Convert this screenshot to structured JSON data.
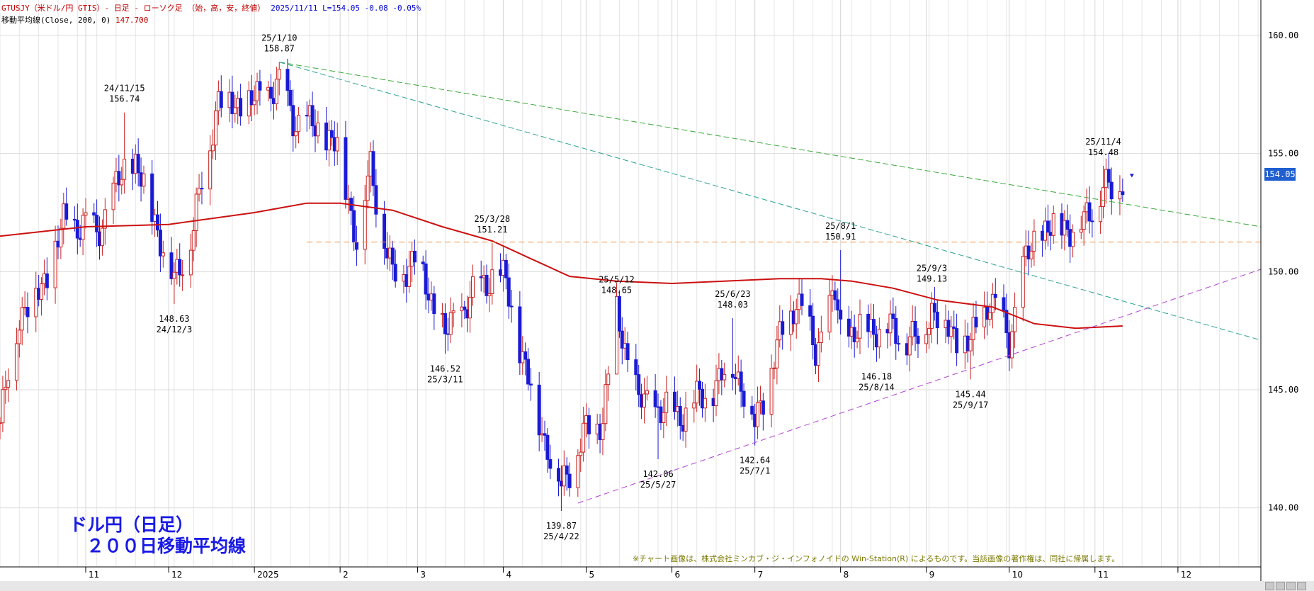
{
  "header": {
    "instrument": "GTUSJY（米ドル/円 GTIS）- 日足 - ローソク足 （始，高，安，終値）",
    "quote": "2025/11/11 L=154.05 -0.08 -0.05%",
    "ma_label": "移動平均線(Close, 200, 0)",
    "ma_value": "147.700"
  },
  "title_box": {
    "line1": "ドル円（日足）",
    "line2": "２００日移動平均線"
  },
  "copyright": "※チャート画像は、株式会社ミンカブ・ジ・インフォノイドの Win-Station(R) によるものです。当該画像の著作権は、同社に帰属します。",
  "last_price_tag": "154.05",
  "colors": {
    "up": "#cc2020",
    "down": "#1a1ad6",
    "ma": "#cc1010",
    "resistance": "#3aa83a",
    "support": "#b040d0",
    "level": "#f09040",
    "secondary": "#2aa090",
    "price_tag": "#1f5fd0"
  },
  "icons": {
    "scroll_left": "arrow-left-icon",
    "scroll_right": "arrow-right-icon",
    "zoom_out": "zoom-out-icon",
    "zoom_in": "zoom-in-icon"
  },
  "chart_data": {
    "type": "candlestick",
    "title": "ドル円（日足）　２００日移動平均線",
    "ylabel": "",
    "ylim": [
      137.5,
      161.5
    ],
    "y_ticks": [
      "160.00",
      "155.00",
      "150.00",
      "145.00",
      "140.00"
    ],
    "x_ticks": [
      "11",
      "12",
      "2025",
      "2",
      "3",
      "4",
      "5",
      "6",
      "7",
      "8",
      "9",
      "10",
      "11",
      "12"
    ],
    "x_tick_dates": [
      "2024-11-01",
      "2024-12-01",
      "2025-01-01",
      "2025-02-01",
      "2025-03-01",
      "2025-04-01",
      "2025-05-01",
      "2025-06-01",
      "2025-07-01",
      "2025-08-01",
      "2025-09-01",
      "2025-10-01",
      "2025-11-01",
      "2025-12-01"
    ],
    "xlim": [
      "2024-10-01",
      "2025-12-31"
    ],
    "grid": true,
    "ohlc_points": [
      {
        "date": "2024-10-01",
        "close": 143.6
      },
      {
        "date": "2024-10-08",
        "close": 148.2
      },
      {
        "date": "2024-10-16",
        "close": 149.3
      },
      {
        "date": "2024-10-24",
        "close": 152.0
      },
      {
        "date": "2024-10-31",
        "close": 152.0
      },
      {
        "date": "2024-11-05",
        "close": 151.6
      },
      {
        "date": "2024-11-15",
        "close": 154.3
      },
      {
        "date": "2024-11-19",
        "close": 154.6
      },
      {
        "date": "2024-11-28",
        "close": 151.5
      },
      {
        "date": "2024-12-03",
        "close": 149.5
      },
      {
        "date": "2024-12-10",
        "close": 151.9
      },
      {
        "date": "2024-12-19",
        "close": 157.4
      },
      {
        "date": "2024-12-25",
        "close": 157.0
      },
      {
        "date": "2025-01-03",
        "close": 157.3
      },
      {
        "date": "2025-01-10",
        "close": 158.0
      },
      {
        "date": "2025-01-15",
        "close": 156.5
      },
      {
        "date": "2025-01-24",
        "close": 156.0
      },
      {
        "date": "2025-01-31",
        "close": 155.3
      },
      {
        "date": "2025-02-07",
        "close": 151.4
      },
      {
        "date": "2025-02-12",
        "close": 154.4
      },
      {
        "date": "2025-02-20",
        "close": 149.7
      },
      {
        "date": "2025-02-28",
        "close": 150.6
      },
      {
        "date": "2025-03-11",
        "close": 147.3
      },
      {
        "date": "2025-03-19",
        "close": 148.7
      },
      {
        "date": "2025-03-28",
        "close": 149.9
      },
      {
        "date": "2025-04-02",
        "close": 149.5
      },
      {
        "date": "2025-04-08",
        "close": 146.3
      },
      {
        "date": "2025-04-16",
        "close": 142.9
      },
      {
        "date": "2025-04-22",
        "close": 140.9
      },
      {
        "date": "2025-04-30",
        "close": 143.0
      },
      {
        "date": "2025-05-07",
        "close": 143.9
      },
      {
        "date": "2025-05-12",
        "close": 148.2
      },
      {
        "date": "2025-05-20",
        "close": 144.5
      },
      {
        "date": "2025-05-27",
        "close": 144.2
      },
      {
        "date": "2025-06-03",
        "close": 143.9
      },
      {
        "date": "2025-06-11",
        "close": 144.6
      },
      {
        "date": "2025-06-18",
        "close": 145.3
      },
      {
        "date": "2025-06-23",
        "close": 146.2
      },
      {
        "date": "2025-07-01",
        "close": 143.6
      },
      {
        "date": "2025-07-09",
        "close": 146.7
      },
      {
        "date": "2025-07-16",
        "close": 148.9
      },
      {
        "date": "2025-07-23",
        "close": 146.7
      },
      {
        "date": "2025-07-30",
        "close": 149.0
      },
      {
        "date": "2025-08-01",
        "close": 147.4
      },
      {
        "date": "2025-08-07",
        "close": 147.4
      },
      {
        "date": "2025-08-14",
        "close": 147.7
      },
      {
        "date": "2025-08-21",
        "close": 147.4
      },
      {
        "date": "2025-08-29",
        "close": 147.1
      },
      {
        "date": "2025-09-03",
        "close": 148.5
      },
      {
        "date": "2025-09-10",
        "close": 147.4
      },
      {
        "date": "2025-09-17",
        "close": 146.9
      },
      {
        "date": "2025-09-24",
        "close": 148.9
      },
      {
        "date": "2025-10-01",
        "close": 147.1
      },
      {
        "date": "2025-10-06",
        "close": 150.1
      },
      {
        "date": "2025-10-10",
        "close": 151.2
      },
      {
        "date": "2025-10-14",
        "close": 151.8
      },
      {
        "date": "2025-10-21",
        "close": 151.9
      },
      {
        "date": "2025-10-28",
        "close": 152.0
      },
      {
        "date": "2025-11-04",
        "close": 153.7
      },
      {
        "date": "2025-11-07",
        "close": 153.3
      },
      {
        "date": "2025-11-11",
        "open": 154.13,
        "close": 154.05
      }
    ],
    "series": [
      {
        "name": "移動平均線(Close, 200, 0)",
        "type": "line",
        "points": [
          [
            "2024-10-01",
            151.5
          ],
          [
            "2024-11-01",
            151.9
          ],
          [
            "2024-12-01",
            152.0
          ],
          [
            "2025-01-01",
            152.5
          ],
          [
            "2025-01-20",
            152.9
          ],
          [
            "2025-02-01",
            152.9
          ],
          [
            "2025-02-20",
            152.6
          ],
          [
            "2025-03-10",
            151.9
          ],
          [
            "2025-03-28",
            151.3
          ],
          [
            "2025-04-10",
            150.6
          ],
          [
            "2025-04-25",
            149.8
          ],
          [
            "2025-05-12",
            149.6
          ],
          [
            "2025-06-01",
            149.5
          ],
          [
            "2025-06-20",
            149.6
          ],
          [
            "2025-07-10",
            149.7
          ],
          [
            "2025-07-25",
            149.7
          ],
          [
            "2025-08-05",
            149.6
          ],
          [
            "2025-08-20",
            149.3
          ],
          [
            "2025-09-05",
            148.8
          ],
          [
            "2025-09-25",
            148.5
          ],
          [
            "2025-10-10",
            147.8
          ],
          [
            "2025-10-25",
            147.6
          ],
          [
            "2025-11-11",
            147.7
          ]
        ]
      }
    ],
    "trendlines": [
      {
        "name": "resistance",
        "from": [
          "2025-01-10",
          158.87
        ],
        "to": [
          "2025-12-31",
          151.9
        ]
      },
      {
        "name": "secondary",
        "from": [
          "2025-01-10",
          158.87
        ],
        "to": [
          "2025-12-31",
          147.1
        ]
      },
      {
        "name": "support",
        "from": [
          "2025-04-28",
          140.2
        ],
        "to": [
          "2025-12-31",
          150.1
        ]
      },
      {
        "name": "level",
        "from": [
          "2025-01-20",
          151.25
        ],
        "to": [
          "2025-12-31",
          151.25
        ]
      }
    ],
    "annotations": [
      {
        "date": "2024-11-15",
        "price": 156.74,
        "label": [
          "24/11/15",
          "156.74"
        ],
        "position": "above"
      },
      {
        "date": "2024-12-03",
        "price": 148.63,
        "label": [
          "148.63",
          "24/12/3"
        ],
        "position": "below"
      },
      {
        "date": "2025-01-10",
        "price": 158.87,
        "label": [
          "25/1/10",
          "158.87"
        ],
        "position": "above"
      },
      {
        "date": "2025-03-11",
        "price": 146.52,
        "label": [
          "146.52",
          "25/3/11"
        ],
        "position": "below"
      },
      {
        "date": "2025-03-28",
        "price": 151.21,
        "label": [
          "25/3/28",
          "151.21"
        ],
        "position": "above"
      },
      {
        "date": "2025-04-22",
        "price": 139.87,
        "label": [
          "139.87",
          "25/4/22"
        ],
        "position": "below"
      },
      {
        "date": "2025-05-12",
        "price": 148.65,
        "label": [
          "25/5/12",
          "148.65"
        ],
        "position": "above"
      },
      {
        "date": "2025-05-27",
        "price": 142.06,
        "label": [
          "142.06",
          "25/5/27"
        ],
        "position": "below"
      },
      {
        "date": "2025-06-23",
        "price": 148.03,
        "label": [
          "25/6/23",
          "148.03"
        ],
        "position": "above"
      },
      {
        "date": "2025-07-01",
        "price": 142.64,
        "label": [
          "142.64",
          "25/7/1"
        ],
        "position": "below"
      },
      {
        "date": "2025-08-01",
        "price": 150.91,
        "label": [
          "25/8/1",
          "150.91"
        ],
        "position": "above"
      },
      {
        "date": "2025-08-14",
        "price": 146.18,
        "label": [
          "146.18",
          "25/8/14"
        ],
        "position": "below"
      },
      {
        "date": "2025-09-03",
        "price": 149.13,
        "label": [
          "25/9/3",
          "149.13"
        ],
        "position": "above"
      },
      {
        "date": "2025-09-17",
        "price": 145.44,
        "label": [
          "145.44",
          "25/9/17"
        ],
        "position": "below"
      },
      {
        "date": "2025-11-04",
        "price": 154.48,
        "label": [
          "25/11/4",
          "154.48"
        ],
        "position": "above"
      }
    ]
  }
}
